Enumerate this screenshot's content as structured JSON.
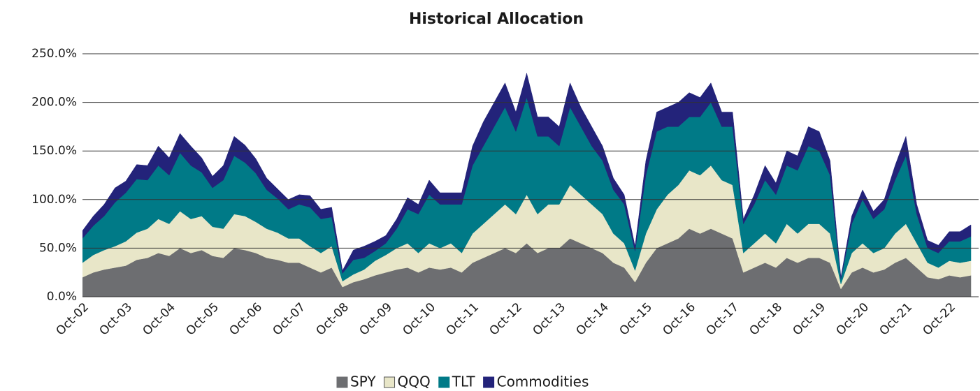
{
  "chart_data": {
    "type": "stacked_area",
    "title": "Historical Allocation",
    "categories": [
      "Oct-02",
      null,
      null,
      null,
      "Oct-03",
      null,
      null,
      null,
      "Oct-04",
      null,
      null,
      null,
      "Oct-05",
      null,
      null,
      null,
      "Oct-06",
      null,
      null,
      null,
      "Oct-07",
      null,
      null,
      null,
      "Oct-08",
      null,
      null,
      null,
      "Oct-09",
      null,
      null,
      null,
      "Oct-10",
      null,
      null,
      null,
      "Oct-11",
      null,
      null,
      null,
      "Oct-12",
      null,
      null,
      null,
      "Oct-13",
      null,
      null,
      null,
      "Oct-14",
      null,
      null,
      null,
      "Oct-15",
      null,
      null,
      null,
      "Oct-16",
      null,
      null,
      null,
      "Oct-17",
      null,
      null,
      null,
      "Oct-18",
      null,
      null,
      null,
      "Oct-19",
      null,
      null,
      null,
      "Oct-20",
      null,
      null,
      null,
      "Oct-21",
      null,
      null,
      null,
      "Oct-22",
      null,
      null
    ],
    "series": [
      {
        "name": "SPY",
        "color": "#6d6e71",
        "values": [
          20,
          25,
          28,
          30,
          32,
          38,
          40,
          45,
          42,
          50,
          45,
          48,
          42,
          40,
          50,
          48,
          45,
          40,
          38,
          35,
          35,
          30,
          25,
          30,
          10,
          15,
          18,
          22,
          25,
          28,
          30,
          25,
          30,
          28,
          30,
          25,
          35,
          40,
          45,
          50,
          45,
          55,
          45,
          50,
          50,
          60,
          55,
          50,
          45,
          35,
          30,
          15,
          35,
          50,
          55,
          60,
          70,
          65,
          70,
          65,
          60,
          25,
          30,
          35,
          30,
          40,
          35,
          40,
          40,
          35,
          8,
          25,
          30,
          25,
          28,
          35,
          40,
          30,
          20,
          18,
          22,
          20,
          22
        ]
      },
      {
        "name": "QQQ",
        "color": "#e8e6c8",
        "values": [
          15,
          18,
          20,
          22,
          25,
          28,
          30,
          35,
          33,
          38,
          35,
          35,
          30,
          30,
          35,
          35,
          32,
          30,
          28,
          25,
          25,
          22,
          20,
          22,
          6,
          8,
          10,
          15,
          18,
          22,
          25,
          20,
          25,
          22,
          25,
          20,
          30,
          35,
          40,
          45,
          40,
          50,
          40,
          45,
          45,
          55,
          50,
          45,
          40,
          30,
          25,
          12,
          30,
          40,
          50,
          55,
          60,
          60,
          65,
          55,
          55,
          20,
          25,
          30,
          25,
          35,
          30,
          35,
          35,
          30,
          5,
          20,
          25,
          20,
          22,
          30,
          35,
          25,
          15,
          12,
          15,
          15,
          15
        ]
      },
      {
        "name": "TLT",
        "color": "#007a87",
        "values": [
          25,
          30,
          35,
          45,
          50,
          55,
          50,
          55,
          50,
          60,
          55,
          45,
          40,
          50,
          60,
          55,
          50,
          40,
          35,
          30,
          35,
          40,
          35,
          30,
          8,
          15,
          12,
          10,
          12,
          20,
          35,
          40,
          50,
          45,
          40,
          50,
          70,
          80,
          90,
          100,
          85,
          100,
          80,
          70,
          60,
          80,
          70,
          60,
          55,
          45,
          40,
          20,
          60,
          80,
          70,
          60,
          55,
          60,
          65,
          55,
          60,
          30,
          40,
          55,
          50,
          60,
          65,
          80,
          75,
          60,
          5,
          30,
          45,
          35,
          40,
          55,
          70,
          30,
          15,
          15,
          20,
          22,
          25
        ]
      },
      {
        "name": "Commodities",
        "color": "#23237a",
        "values": [
          8,
          10,
          12,
          15,
          12,
          15,
          15,
          20,
          18,
          20,
          20,
          15,
          12,
          15,
          20,
          18,
          15,
          12,
          10,
          10,
          10,
          12,
          10,
          10,
          3,
          10,
          12,
          10,
          8,
          10,
          12,
          10,
          15,
          12,
          12,
          12,
          20,
          25,
          25,
          25,
          20,
          25,
          20,
          20,
          20,
          25,
          20,
          20,
          15,
          12,
          10,
          5,
          15,
          20,
          20,
          25,
          25,
          20,
          20,
          15,
          15,
          5,
          10,
          15,
          12,
          15,
          15,
          20,
          20,
          15,
          2,
          8,
          10,
          8,
          10,
          15,
          20,
          10,
          8,
          8,
          10,
          10,
          12
        ]
      }
    ],
    "ylim": [
      0,
      250
    ],
    "yticks": [
      {
        "value": 0,
        "label": "0.0%"
      },
      {
        "value": 50,
        "label": "50.0%"
      },
      {
        "value": 100,
        "label": "100.0%"
      },
      {
        "value": 150,
        "label": "150.0%"
      },
      {
        "value": 200,
        "label": "200.0%"
      },
      {
        "value": 250,
        "label": "250.0%"
      }
    ],
    "grid": true
  }
}
